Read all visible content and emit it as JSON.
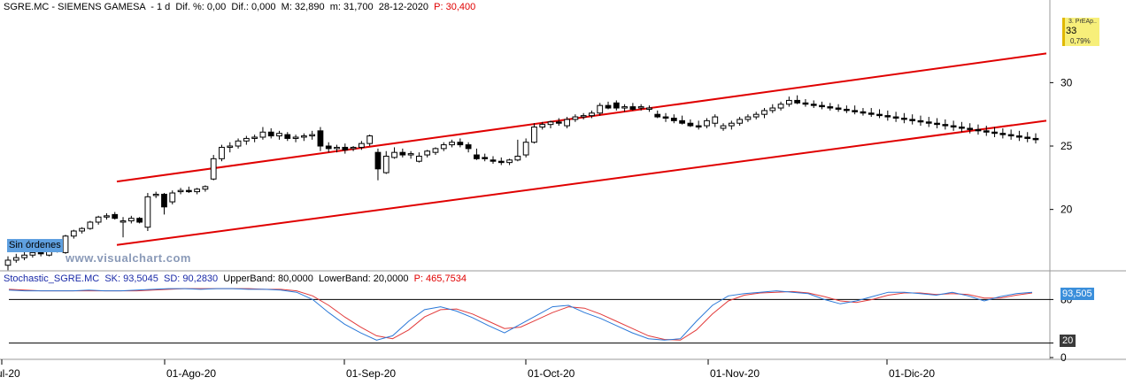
{
  "header": {
    "symbol": "SGRE.MC - SIEMENS GAMESA",
    "period": "1 d",
    "change_pct": "Dif. %: 0,00",
    "change": "Dif.: 0,000",
    "high": "M: 32,890",
    "low": "m: 31,700",
    "date": "28-12-2020",
    "price": "P: 30,400"
  },
  "order_label": "Sin órdenes",
  "watermark": "www.visualchart.com",
  "price_tag": {
    "label": "3. PrEAp..",
    "value": "33",
    "change": "0,79%"
  },
  "stochastic": {
    "name": "Stochastic_SGRE.MC",
    "sk": "SK: 93,5045",
    "sd": "SD: 90,2830",
    "upper_band": "UpperBand: 80,0000",
    "lower_band": "LowerBand: 20,0000",
    "p_value": "P: 465,7534",
    "sk_tag": "93,505",
    "d_tag": "20"
  },
  "colors": {
    "channel": "#e00000",
    "sk_line": "#2a78d8",
    "sd_line": "#e23b3b",
    "band": "#000000",
    "axis_text": "#000000"
  },
  "chart_data": [
    {
      "type": "candlestick",
      "title": "SGRE.MC - SIEMENS GAMESA",
      "ylim": [
        15.3,
        35.4
      ],
      "y_ticks": [
        20,
        25,
        30
      ],
      "x_tick_labels": [
        "ul-20",
        "01-Ago-20",
        "01-Sep-20",
        "01-Oct-20",
        "01-Nov-20",
        "01-Dic-20"
      ],
      "candles": [
        {
          "o": 15.6,
          "h": 16.3,
          "l": 15.2,
          "c": 16.0
        },
        {
          "o": 16.0,
          "h": 16.5,
          "l": 15.8,
          "c": 16.2
        },
        {
          "o": 16.2,
          "h": 16.7,
          "l": 16.0,
          "c": 16.4
        },
        {
          "o": 16.4,
          "h": 16.8,
          "l": 16.2,
          "c": 16.6
        },
        {
          "o": 16.6,
          "h": 16.9,
          "l": 16.3,
          "c": 16.5
        },
        {
          "o": 16.4,
          "h": 17.0,
          "l": 16.3,
          "c": 16.9
        },
        {
          "o": 16.9,
          "h": 17.2,
          "l": 16.6,
          "c": 17.0
        },
        {
          "o": 16.6,
          "h": 18.0,
          "l": 16.5,
          "c": 17.9
        },
        {
          "o": 17.9,
          "h": 18.4,
          "l": 17.7,
          "c": 18.3
        },
        {
          "o": 18.3,
          "h": 18.6,
          "l": 18.1,
          "c": 18.5
        },
        {
          "o": 18.5,
          "h": 19.1,
          "l": 18.4,
          "c": 19.0
        },
        {
          "o": 19.0,
          "h": 19.5,
          "l": 18.8,
          "c": 19.4
        },
        {
          "o": 19.4,
          "h": 19.7,
          "l": 19.2,
          "c": 19.5
        },
        {
          "o": 19.6,
          "h": 19.8,
          "l": 19.2,
          "c": 19.3
        },
        {
          "o": 19.0,
          "h": 19.4,
          "l": 17.8,
          "c": 19.1
        },
        {
          "o": 19.1,
          "h": 19.5,
          "l": 18.9,
          "c": 19.3
        },
        {
          "o": 19.3,
          "h": 19.4,
          "l": 18.9,
          "c": 19.0
        },
        {
          "o": 18.6,
          "h": 21.3,
          "l": 18.3,
          "c": 21.0
        },
        {
          "o": 21.1,
          "h": 21.4,
          "l": 20.9,
          "c": 21.2
        },
        {
          "o": 21.2,
          "h": 21.3,
          "l": 19.6,
          "c": 20.2
        },
        {
          "o": 20.6,
          "h": 21.5,
          "l": 20.4,
          "c": 21.3
        },
        {
          "o": 21.4,
          "h": 21.7,
          "l": 21.2,
          "c": 21.5
        },
        {
          "o": 21.5,
          "h": 21.8,
          "l": 21.3,
          "c": 21.4
        },
        {
          "o": 21.4,
          "h": 21.7,
          "l": 21.2,
          "c": 21.6
        },
        {
          "o": 21.6,
          "h": 21.9,
          "l": 21.4,
          "c": 21.8
        },
        {
          "o": 22.4,
          "h": 24.3,
          "l": 22.3,
          "c": 24.0
        },
        {
          "o": 24.0,
          "h": 25.1,
          "l": 23.8,
          "c": 24.9
        },
        {
          "o": 24.9,
          "h": 25.3,
          "l": 24.5,
          "c": 25.0
        },
        {
          "o": 25.0,
          "h": 25.6,
          "l": 24.8,
          "c": 25.4
        },
        {
          "o": 25.4,
          "h": 25.8,
          "l": 25.1,
          "c": 25.6
        },
        {
          "o": 25.6,
          "h": 25.9,
          "l": 25.3,
          "c": 25.7
        },
        {
          "o": 25.7,
          "h": 26.5,
          "l": 25.5,
          "c": 26.1
        },
        {
          "o": 26.1,
          "h": 26.4,
          "l": 25.6,
          "c": 25.8
        },
        {
          "o": 25.8,
          "h": 26.2,
          "l": 25.5,
          "c": 26.0
        },
        {
          "o": 25.9,
          "h": 26.1,
          "l": 25.4,
          "c": 25.6
        },
        {
          "o": 25.6,
          "h": 25.9,
          "l": 25.3,
          "c": 25.7
        },
        {
          "o": 25.7,
          "h": 26.0,
          "l": 25.4,
          "c": 25.8
        },
        {
          "o": 25.8,
          "h": 26.2,
          "l": 25.5,
          "c": 25.9
        },
        {
          "o": 26.2,
          "h": 26.5,
          "l": 24.6,
          "c": 25.0
        },
        {
          "o": 25.0,
          "h": 25.3,
          "l": 24.5,
          "c": 24.8
        },
        {
          "o": 24.8,
          "h": 25.1,
          "l": 24.5,
          "c": 24.9
        },
        {
          "o": 24.9,
          "h": 25.2,
          "l": 24.4,
          "c": 24.7
        },
        {
          "o": 24.8,
          "h": 25.0,
          "l": 24.6,
          "c": 24.9
        },
        {
          "o": 24.9,
          "h": 25.4,
          "l": 24.7,
          "c": 25.2
        },
        {
          "o": 25.2,
          "h": 25.9,
          "l": 25.0,
          "c": 25.8
        },
        {
          "o": 24.5,
          "h": 24.8,
          "l": 22.3,
          "c": 23.2
        },
        {
          "o": 22.9,
          "h": 24.6,
          "l": 22.8,
          "c": 24.2
        },
        {
          "o": 24.1,
          "h": 24.9,
          "l": 24.0,
          "c": 24.5
        },
        {
          "o": 24.5,
          "h": 24.8,
          "l": 24.1,
          "c": 24.3
        },
        {
          "o": 24.3,
          "h": 24.6,
          "l": 24.0,
          "c": 24.4
        },
        {
          "o": 23.8,
          "h": 24.5,
          "l": 23.7,
          "c": 24.2
        },
        {
          "o": 24.3,
          "h": 24.7,
          "l": 24.1,
          "c": 24.6
        },
        {
          "o": 24.5,
          "h": 24.9,
          "l": 24.3,
          "c": 24.8
        },
        {
          "o": 24.8,
          "h": 25.3,
          "l": 24.6,
          "c": 25.1
        },
        {
          "o": 25.1,
          "h": 25.5,
          "l": 24.9,
          "c": 25.3
        },
        {
          "o": 25.3,
          "h": 25.6,
          "l": 24.9,
          "c": 25.1
        },
        {
          "o": 25.1,
          "h": 25.3,
          "l": 24.5,
          "c": 24.8
        },
        {
          "o": 24.3,
          "h": 24.8,
          "l": 23.9,
          "c": 24.0
        },
        {
          "o": 24.1,
          "h": 24.4,
          "l": 23.8,
          "c": 24.0
        },
        {
          "o": 23.9,
          "h": 24.2,
          "l": 23.6,
          "c": 23.8
        },
        {
          "o": 23.8,
          "h": 24.1,
          "l": 23.5,
          "c": 23.7
        },
        {
          "o": 23.7,
          "h": 24.0,
          "l": 23.5,
          "c": 23.9
        },
        {
          "o": 23.9,
          "h": 25.5,
          "l": 23.8,
          "c": 24.2
        },
        {
          "o": 24.3,
          "h": 25.6,
          "l": 24.1,
          "c": 25.3
        },
        {
          "o": 25.3,
          "h": 26.8,
          "l": 25.2,
          "c": 26.5
        },
        {
          "o": 26.5,
          "h": 26.9,
          "l": 26.3,
          "c": 26.7
        },
        {
          "o": 26.7,
          "h": 27.0,
          "l": 26.4,
          "c": 26.9
        },
        {
          "o": 26.9,
          "h": 27.2,
          "l": 26.6,
          "c": 26.8
        },
        {
          "o": 26.6,
          "h": 27.3,
          "l": 26.4,
          "c": 27.1
        },
        {
          "o": 27.1,
          "h": 27.5,
          "l": 26.9,
          "c": 27.3
        },
        {
          "o": 27.3,
          "h": 27.6,
          "l": 27.1,
          "c": 27.4
        },
        {
          "o": 27.4,
          "h": 27.8,
          "l": 27.2,
          "c": 27.6
        },
        {
          "o": 27.6,
          "h": 28.4,
          "l": 27.4,
          "c": 28.2
        },
        {
          "o": 28.2,
          "h": 28.5,
          "l": 27.9,
          "c": 28.0
        },
        {
          "o": 28.4,
          "h": 28.6,
          "l": 27.8,
          "c": 28.0
        },
        {
          "o": 28.0,
          "h": 28.3,
          "l": 27.7,
          "c": 28.1
        },
        {
          "o": 28.1,
          "h": 28.4,
          "l": 27.8,
          "c": 27.9
        },
        {
          "o": 28.0,
          "h": 28.3,
          "l": 27.8,
          "c": 28.1
        },
        {
          "o": 27.9,
          "h": 28.2,
          "l": 27.7,
          "c": 28.0
        },
        {
          "o": 27.5,
          "h": 27.8,
          "l": 27.2,
          "c": 27.3
        },
        {
          "o": 27.3,
          "h": 27.6,
          "l": 26.9,
          "c": 27.2
        },
        {
          "o": 27.2,
          "h": 27.5,
          "l": 26.8,
          "c": 27.0
        },
        {
          "o": 27.0,
          "h": 27.4,
          "l": 26.7,
          "c": 26.8
        },
        {
          "o": 26.8,
          "h": 27.1,
          "l": 26.5,
          "c": 26.6
        },
        {
          "o": 26.6,
          "h": 27.0,
          "l": 26.3,
          "c": 26.5
        },
        {
          "o": 26.6,
          "h": 27.2,
          "l": 26.4,
          "c": 27.0
        },
        {
          "o": 26.8,
          "h": 27.5,
          "l": 26.5,
          "c": 27.3
        },
        {
          "o": 26.4,
          "h": 26.8,
          "l": 26.2,
          "c": 26.6
        },
        {
          "o": 26.6,
          "h": 27.0,
          "l": 26.3,
          "c": 26.8
        },
        {
          "o": 26.8,
          "h": 27.3,
          "l": 26.6,
          "c": 27.1
        },
        {
          "o": 27.1,
          "h": 27.5,
          "l": 26.9,
          "c": 27.3
        },
        {
          "o": 27.3,
          "h": 27.7,
          "l": 27.1,
          "c": 27.5
        },
        {
          "o": 27.5,
          "h": 28.0,
          "l": 27.2,
          "c": 27.8
        },
        {
          "o": 27.8,
          "h": 28.3,
          "l": 27.6,
          "c": 28.0
        },
        {
          "o": 28.0,
          "h": 28.5,
          "l": 27.8,
          "c": 28.3
        },
        {
          "o": 28.3,
          "h": 28.9,
          "l": 28.1,
          "c": 28.6
        },
        {
          "o": 28.6,
          "h": 29.0,
          "l": 28.3,
          "c": 28.4
        },
        {
          "o": 28.4,
          "h": 28.7,
          "l": 28.1,
          "c": 28.3
        },
        {
          "o": 28.3,
          "h": 28.6,
          "l": 28.0,
          "c": 28.2
        },
        {
          "o": 28.2,
          "h": 28.5,
          "l": 27.9,
          "c": 28.1
        },
        {
          "o": 28.1,
          "h": 28.4,
          "l": 27.8,
          "c": 28.0
        },
        {
          "o": 28.0,
          "h": 28.3,
          "l": 27.7,
          "c": 27.9
        },
        {
          "o": 27.9,
          "h": 28.2,
          "l": 27.6,
          "c": 27.8
        },
        {
          "o": 27.8,
          "h": 28.2,
          "l": 27.5,
          "c": 27.7
        },
        {
          "o": 27.7,
          "h": 28.0,
          "l": 27.4,
          "c": 27.6
        },
        {
          "o": 27.6,
          "h": 28.0,
          "l": 27.3,
          "c": 27.5
        },
        {
          "o": 27.5,
          "h": 27.9,
          "l": 27.2,
          "c": 27.4
        },
        {
          "o": 27.4,
          "h": 27.8,
          "l": 27.0,
          "c": 27.3
        },
        {
          "o": 27.3,
          "h": 27.7,
          "l": 26.9,
          "c": 27.2
        },
        {
          "o": 27.2,
          "h": 27.6,
          "l": 26.8,
          "c": 27.1
        },
        {
          "o": 27.1,
          "h": 27.5,
          "l": 26.7,
          "c": 27.0
        },
        {
          "o": 27.0,
          "h": 27.4,
          "l": 26.6,
          "c": 26.9
        },
        {
          "o": 26.9,
          "h": 27.3,
          "l": 26.5,
          "c": 26.8
        },
        {
          "o": 26.8,
          "h": 27.2,
          "l": 26.4,
          "c": 26.7
        },
        {
          "o": 26.7,
          "h": 27.1,
          "l": 26.3,
          "c": 26.6
        },
        {
          "o": 26.6,
          "h": 27.0,
          "l": 26.2,
          "c": 26.5
        },
        {
          "o": 26.5,
          "h": 26.9,
          "l": 26.1,
          "c": 26.4
        },
        {
          "o": 26.4,
          "h": 26.8,
          "l": 26.0,
          "c": 26.3
        },
        {
          "o": 26.3,
          "h": 26.7,
          "l": 25.9,
          "c": 26.2
        },
        {
          "o": 26.2,
          "h": 26.6,
          "l": 25.8,
          "c": 26.1
        },
        {
          "o": 26.1,
          "h": 26.5,
          "l": 25.7,
          "c": 26.0
        },
        {
          "o": 26.0,
          "h": 26.4,
          "l": 25.6,
          "c": 25.9
        },
        {
          "o": 25.9,
          "h": 26.3,
          "l": 25.5,
          "c": 25.8
        },
        {
          "o": 25.8,
          "h": 26.2,
          "l": 25.4,
          "c": 25.7
        },
        {
          "o": 25.7,
          "h": 26.1,
          "l": 25.3,
          "c": 25.6
        },
        {
          "o": 25.6,
          "h": 26.0,
          "l": 25.2,
          "c": 25.5
        }
      ],
      "channel_upper": [
        [
          0,
          22.2
        ],
        [
          1,
          32.3
        ]
      ],
      "channel_lower": [
        [
          0,
          17.2
        ],
        [
          1,
          27.0
        ]
      ]
    },
    {
      "type": "line",
      "title": "Stochastic_SGRE.MC",
      "ylim": [
        0,
        100
      ],
      "y_ticks": [
        0,
        20,
        80
      ],
      "upper_band": 80,
      "lower_band": 20,
      "series": [
        {
          "name": "SK",
          "values": [
            93,
            92,
            92,
            92,
            92,
            93,
            92,
            92,
            93,
            94,
            95,
            95,
            94,
            95,
            95,
            94,
            94,
            93,
            90,
            80,
            62,
            46,
            34,
            24,
            30,
            50,
            66,
            70,
            64,
            55,
            44,
            34,
            46,
            58,
            70,
            72,
            62,
            54,
            44,
            34,
            26,
            24,
            26,
            50,
            72,
            85,
            88,
            90,
            92,
            90,
            88,
            80,
            74,
            78,
            84,
            90,
            90,
            88,
            86,
            90,
            85,
            78,
            84,
            88,
            90
          ]
        },
        {
          "name": "SD",
          "values": [
            94,
            93,
            92,
            92,
            92,
            92,
            92,
            92,
            92,
            93,
            94,
            95,
            95,
            95,
            95,
            95,
            94,
            94,
            92,
            85,
            72,
            56,
            42,
            30,
            26,
            38,
            56,
            66,
            67,
            60,
            50,
            40,
            42,
            52,
            62,
            70,
            68,
            60,
            50,
            40,
            30,
            25,
            24,
            38,
            60,
            78,
            86,
            89,
            90,
            91,
            89,
            84,
            78,
            76,
            80,
            86,
            89,
            89,
            87,
            88,
            87,
            82,
            82,
            86,
            89
          ]
        }
      ]
    }
  ]
}
